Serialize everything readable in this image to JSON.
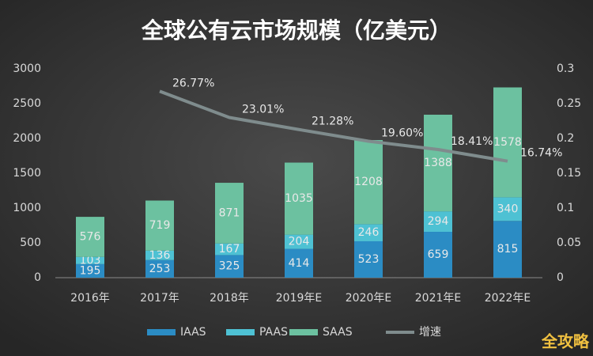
{
  "chart_data": {
    "type": "bar",
    "title": "全球公有云市场规模（亿美元）",
    "categories": [
      "2016年",
      "2017年",
      "2018年",
      "2019年E",
      "2020年E",
      "2021年E",
      "2022年E"
    ],
    "series": [
      {
        "name": "IAAS",
        "type": "bar",
        "color": "#2b8cc4",
        "values": [
          195,
          253,
          325,
          414,
          523,
          659,
          815
        ]
      },
      {
        "name": "PAAS",
        "type": "bar",
        "color": "#4ec1d3",
        "values": [
          103,
          136,
          167,
          204,
          246,
          294,
          340
        ]
      },
      {
        "name": "SAAS",
        "type": "bar",
        "color": "#6cc1a0",
        "values": [
          576,
          719,
          871,
          1035,
          1208,
          1388,
          1578
        ]
      },
      {
        "name": "增速",
        "type": "line",
        "axis": "y2",
        "color": "#7f8c8d",
        "values": [
          null,
          0.2677,
          0.2301,
          0.2128,
          0.196,
          0.1841,
          0.1674
        ],
        "value_labels": [
          null,
          "26.77%",
          "23.01%",
          "21.28%",
          "19.60%",
          "18.41%",
          "16.74%"
        ]
      }
    ],
    "ylim": [
      0,
      3000
    ],
    "yticks": [
      0,
      500,
      1000,
      1500,
      2000,
      2500,
      3000
    ],
    "y2lim": [
      0,
      0.3
    ],
    "y2ticks": [
      0,
      0.05,
      0.1,
      0.15,
      0.2,
      0.25,
      0.3
    ],
    "grid": false,
    "legend": "bottom",
    "watermark": "全攻略"
  }
}
